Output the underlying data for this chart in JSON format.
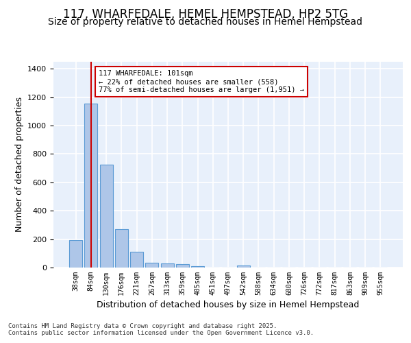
{
  "title": "117, WHARFEDALE, HEMEL HEMPSTEAD, HP2 5TG",
  "subtitle": "Size of property relative to detached houses in Hemel Hempstead",
  "xlabel": "Distribution of detached houses by size in Hemel Hempstead",
  "ylabel": "Number of detached properties",
  "categories": [
    "38sqm",
    "84sqm",
    "130sqm",
    "176sqm",
    "221sqm",
    "267sqm",
    "313sqm",
    "359sqm",
    "405sqm",
    "451sqm",
    "497sqm",
    "542sqm",
    "588sqm",
    "634sqm",
    "680sqm",
    "726sqm",
    "772sqm",
    "817sqm",
    "863sqm",
    "909sqm",
    "955sqm"
  ],
  "values": [
    195,
    1155,
    725,
    270,
    110,
    35,
    30,
    22,
    8,
    0,
    0,
    15,
    0,
    0,
    0,
    0,
    0,
    0,
    0,
    0,
    0
  ],
  "bar_color": "#aec6e8",
  "bar_edge_color": "#5b9bd5",
  "bg_color": "#e8f0fb",
  "grid_color": "#ffffff",
  "vline_x": 1,
  "vline_color": "#cc0000",
  "annotation_text": "117 WHARFEDALE: 101sqm\n← 22% of detached houses are smaller (558)\n77% of semi-detached houses are larger (1,951) →",
  "annotation_box_color": "#ffffff",
  "annotation_box_edge": "#cc0000",
  "footer": "Contains HM Land Registry data © Crown copyright and database right 2025.\nContains public sector information licensed under the Open Government Licence v3.0.",
  "ylim": [
    0,
    1450
  ],
  "title_fontsize": 12,
  "subtitle_fontsize": 10,
  "ylabel_fontsize": 9,
  "xlabel_fontsize": 9
}
